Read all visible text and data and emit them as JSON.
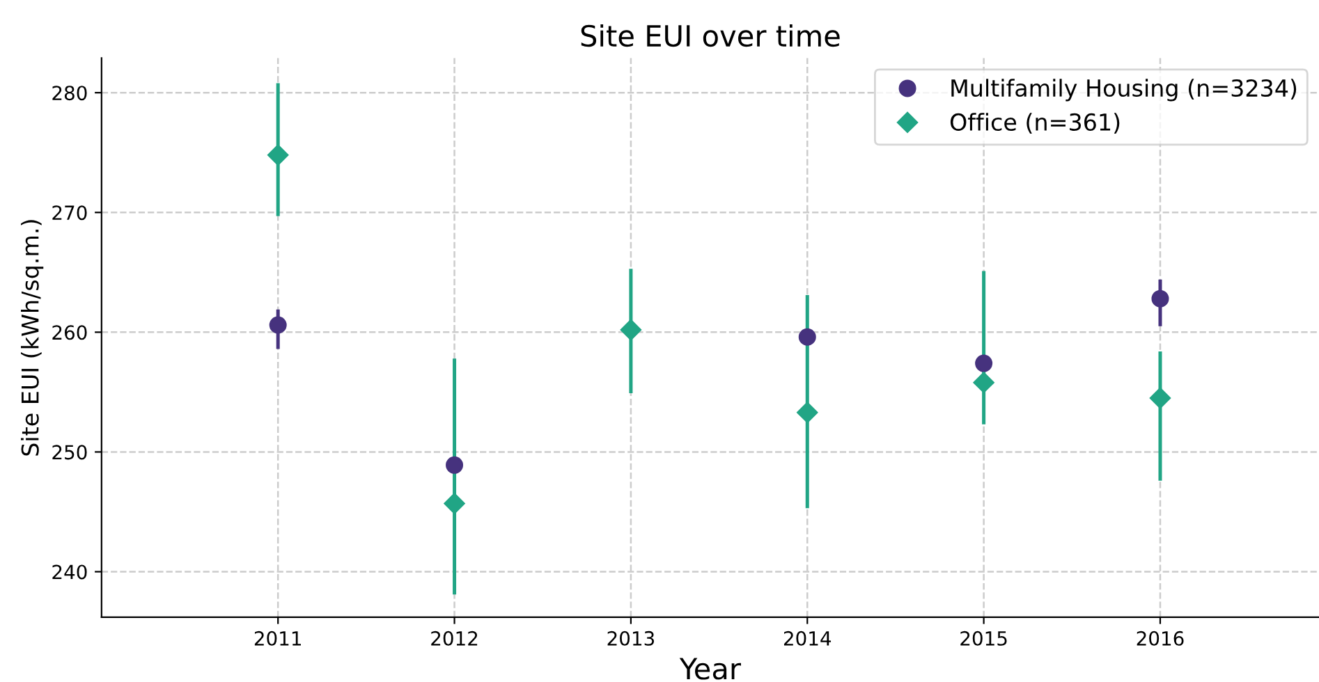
{
  "chart_data": {
    "type": "scatter",
    "title": "Site EUI over time",
    "xlabel": "Year",
    "ylabel": "Site EUI (kWh/sq.m.)",
    "categories": [
      "2011",
      "2012",
      "2013",
      "2014",
      "2015",
      "2016"
    ],
    "series": [
      {
        "name": "Multifamily Housing (n=3234)",
        "color": "#46327e",
        "marker": "circle",
        "values": [
          260.6,
          248.9,
          null,
          259.6,
          257.4,
          262.8
        ],
        "errors": [
          [
            258.6,
            261.9
          ],
          null,
          null,
          null,
          null,
          [
            260.5,
            264.4
          ]
        ]
      },
      {
        "name": "Office (n=361)",
        "color": "#21a585",
        "marker": "diamond",
        "values": [
          274.8,
          245.7,
          260.2,
          253.3,
          255.8,
          254.5
        ],
        "errors": [
          [
            269.7,
            280.8
          ],
          [
            238.1,
            257.8
          ],
          [
            254.9,
            265.3
          ],
          [
            245.3,
            263.1
          ],
          [
            252.3,
            265.1
          ],
          [
            247.6,
            258.4
          ]
        ]
      }
    ],
    "ylim": [
      236.2,
      282.9
    ],
    "yticks": [
      240,
      250,
      260,
      270,
      280
    ],
    "grid": true,
    "legend": "top right"
  }
}
